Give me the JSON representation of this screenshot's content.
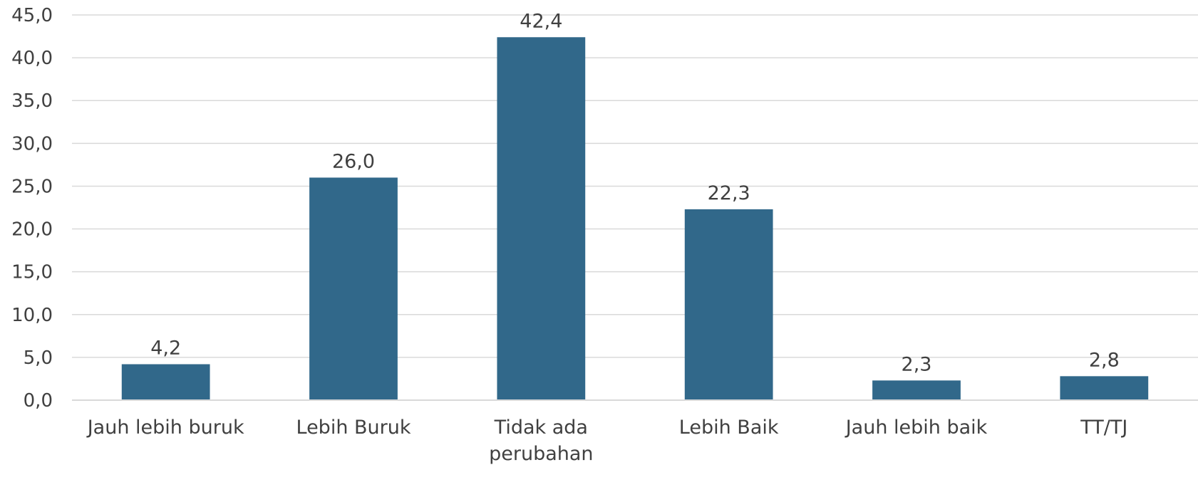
{
  "chart_data": {
    "type": "bar",
    "title": "",
    "xlabel": "",
    "ylabel": "",
    "categories": [
      [
        "Jauh lebih buruk"
      ],
      [
        "Lebih Buruk"
      ],
      [
        "Tidak ada",
        "perubahan"
      ],
      [
        "Lebih Baik"
      ],
      [
        "Jauh lebih baik"
      ],
      [
        "TT/TJ"
      ]
    ],
    "values": [
      4.2,
      26.0,
      42.4,
      22.3,
      2.3,
      2.8
    ],
    "value_labels": [
      "4,2",
      "26,0",
      "42,4",
      "22,3",
      "2,3",
      "2,8"
    ],
    "ylim": [
      0,
      45
    ],
    "yticks": [
      0,
      5,
      10,
      15,
      20,
      25,
      30,
      35,
      40,
      45
    ],
    "ytick_labels": [
      "0,0",
      "5,0",
      "10,0",
      "15,0",
      "20,0",
      "25,0",
      "30,0",
      "35,0",
      "40,0",
      "45,0"
    ],
    "grid": true,
    "legend": "none",
    "bar_color": "#31688a",
    "grid_color": "#d9d9d9",
    "text_color": "#404040"
  }
}
